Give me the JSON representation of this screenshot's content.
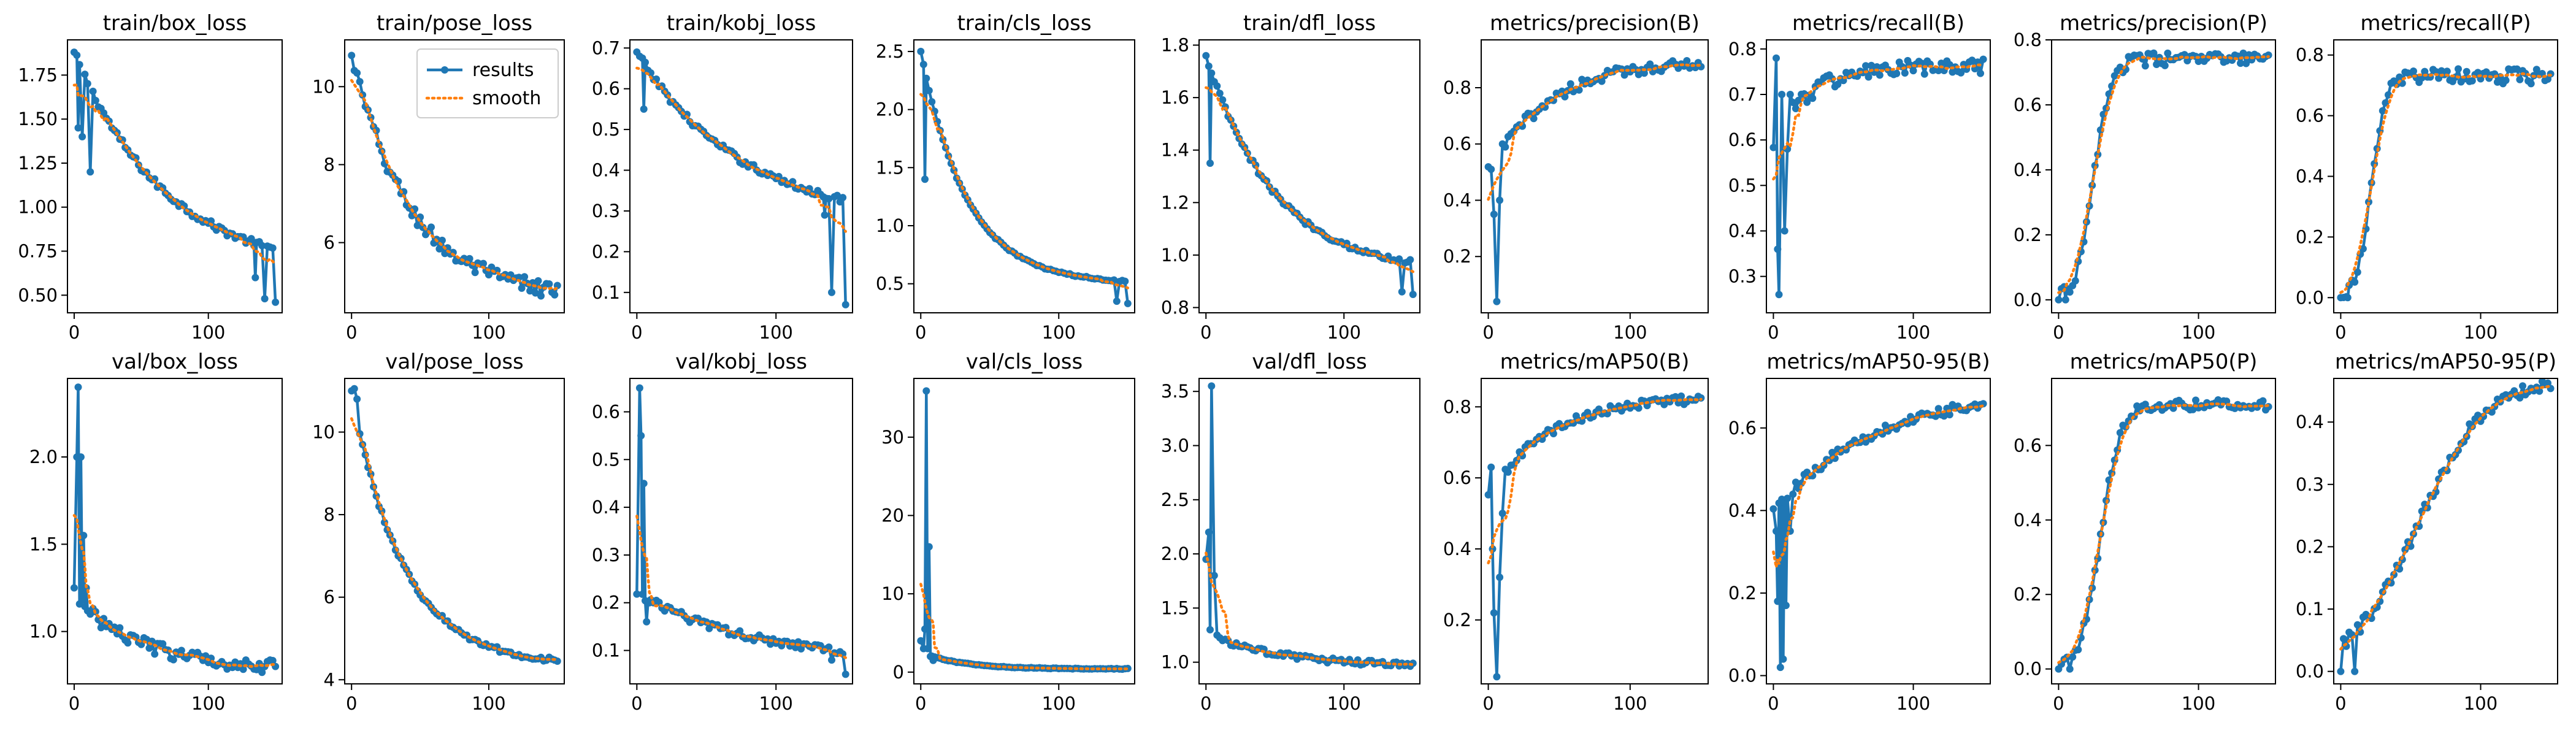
{
  "figure": {
    "background": "#ffffff"
  },
  "legend": {
    "entries": [
      {
        "label": "results",
        "color": "#1f77b4",
        "style": "line-marker"
      },
      {
        "label": "smooth",
        "color": "#ff7f0e",
        "style": "dotted"
      }
    ],
    "placement": "upper-right of train/pose_loss panel"
  },
  "chart_data": [
    {
      "type": "line",
      "title": "train/box_loss",
      "xlim": [
        -5,
        155
      ],
      "ylim": [
        0.4,
        1.95
      ],
      "xticks": [
        0,
        100
      ],
      "yticks": [
        0.5,
        0.75,
        1.0,
        1.25,
        1.5,
        1.75
      ],
      "ytick_labels": [
        "0.50",
        "0.75",
        "1.00",
        "1.25",
        "1.50",
        "1.75"
      ],
      "series": [
        {
          "name": "results",
          "profile": "decay",
          "start": 1.88,
          "end": 0.62,
          "rate": 2.2,
          "noise": 0.02,
          "points": [
            [
              0,
              1.88
            ],
            [
              3,
              1.45
            ],
            [
              6,
              1.4
            ],
            [
              12,
              1.2
            ],
            [
              135,
              0.6
            ],
            [
              142,
              0.48
            ],
            [
              150,
              0.46
            ]
          ]
        },
        {
          "name": "smooth"
        }
      ]
    },
    {
      "type": "line",
      "title": "train/pose_loss",
      "xlim": [
        -5,
        155
      ],
      "ylim": [
        4.2,
        11.2
      ],
      "xticks": [
        0,
        100
      ],
      "yticks": [
        6,
        8,
        10
      ],
      "ytick_labels": [
        "6",
        "8",
        "10"
      ],
      "series": [
        {
          "name": "results",
          "profile": "decay",
          "start": 10.8,
          "end": 4.6,
          "rate": 3.5,
          "noise": 0.22,
          "points": [
            [
              0,
              10.8
            ],
            [
              150,
              4.9
            ]
          ]
        },
        {
          "name": "smooth"
        }
      ]
    },
    {
      "type": "line",
      "title": "train/kobj_loss",
      "xlim": [
        -5,
        155
      ],
      "ylim": [
        0.05,
        0.72
      ],
      "xticks": [
        0,
        100
      ],
      "yticks": [
        0.1,
        0.2,
        0.3,
        0.4,
        0.5,
        0.6,
        0.7
      ],
      "ytick_labels": [
        "0.1",
        "0.2",
        "0.3",
        "0.4",
        "0.5",
        "0.6",
        "0.7"
      ],
      "series": [
        {
          "name": "results",
          "profile": "decay",
          "start": 0.69,
          "end": 0.27,
          "rate": 2.0,
          "noise": 0.008,
          "points": [
            [
              0,
              0.69
            ],
            [
              5,
              0.55
            ],
            [
              135,
              0.29
            ],
            [
              140,
              0.1
            ],
            [
              150,
              0.07
            ]
          ]
        },
        {
          "name": "smooth"
        }
      ]
    },
    {
      "type": "line",
      "title": "train/cls_loss",
      "xlim": [
        -5,
        155
      ],
      "ylim": [
        0.25,
        2.6
      ],
      "xticks": [
        0,
        100
      ],
      "yticks": [
        0.5,
        1.0,
        1.5,
        2.0,
        2.5
      ],
      "ytick_labels": [
        "0.5",
        "1.0",
        "1.5",
        "2.0",
        "2.5"
      ],
      "series": [
        {
          "name": "results",
          "profile": "decay",
          "start": 2.5,
          "end": 0.5,
          "rate": 4.5,
          "noise": 0.008,
          "points": [
            [
              0,
              2.5
            ],
            [
              3,
              1.4
            ],
            [
              142,
              0.35
            ],
            [
              150,
              0.33
            ]
          ]
        },
        {
          "name": "smooth"
        }
      ]
    },
    {
      "type": "line",
      "title": "train/dfl_loss",
      "xlim": [
        -5,
        155
      ],
      "ylim": [
        0.78,
        1.82
      ],
      "xticks": [
        0,
        100
      ],
      "yticks": [
        0.8,
        1.0,
        1.2,
        1.4,
        1.6,
        1.8
      ],
      "ytick_labels": [
        "0.8",
        "1.0",
        "1.2",
        "1.4",
        "1.6",
        "1.8"
      ],
      "series": [
        {
          "name": "results",
          "profile": "decay",
          "start": 1.76,
          "end": 0.93,
          "rate": 3.0,
          "noise": 0.01,
          "points": [
            [
              0,
              1.76
            ],
            [
              3,
              1.35
            ],
            [
              142,
              0.86
            ],
            [
              150,
              0.85
            ]
          ]
        },
        {
          "name": "smooth"
        }
      ]
    },
    {
      "type": "line",
      "title": "metrics/precision(B)",
      "xlim": [
        -5,
        155
      ],
      "ylim": [
        0.0,
        0.97
      ],
      "xticks": [
        0,
        100
      ],
      "yticks": [
        0.2,
        0.4,
        0.6,
        0.8
      ],
      "ytick_labels": [
        "0.2",
        "0.4",
        "0.6",
        "0.8"
      ],
      "series": [
        {
          "name": "results",
          "profile": "rise",
          "start": 0.5,
          "end": 0.9,
          "rate": 3.5,
          "noise": 0.02,
          "points": [
            [
              2,
              0.51
            ],
            [
              4,
              0.35
            ],
            [
              6,
              0.04
            ],
            [
              8,
              0.4
            ],
            [
              10,
              0.6
            ]
          ]
        },
        {
          "name": "smooth"
        }
      ]
    },
    {
      "type": "line",
      "title": "metrics/recall(B)",
      "xlim": [
        -5,
        155
      ],
      "ylim": [
        0.22,
        0.82
      ],
      "xticks": [
        0,
        100
      ],
      "yticks": [
        0.3,
        0.4,
        0.5,
        0.6,
        0.7,
        0.8
      ],
      "ytick_labels": [
        "0.3",
        "0.4",
        "0.5",
        "0.6",
        "0.7",
        "0.8"
      ],
      "series": [
        {
          "name": "results",
          "profile": "rise",
          "start": 0.6,
          "end": 0.76,
          "rate": 6.0,
          "noise": 0.018,
          "points": [
            [
              2,
              0.78
            ],
            [
              3,
              0.36
            ],
            [
              4,
              0.26
            ],
            [
              6,
              0.7
            ],
            [
              8,
              0.4
            ],
            [
              10,
              0.58
            ],
            [
              12,
              0.7
            ]
          ]
        },
        {
          "name": "smooth"
        }
      ]
    },
    {
      "type": "line",
      "title": "metrics/precision(P)",
      "xlim": [
        -5,
        155
      ],
      "ylim": [
        -0.04,
        0.8
      ],
      "xticks": [
        0,
        100
      ],
      "yticks": [
        0.0,
        0.2,
        0.4,
        0.6,
        0.8
      ],
      "ytick_labels": [
        "0.0",
        "0.2",
        "0.4",
        "0.6",
        "0.8"
      ],
      "series": [
        {
          "name": "results",
          "profile": "sigmoid",
          "start": 0.0,
          "end": 0.74,
          "mid": 25,
          "width": 6,
          "noise": 0.02,
          "points": [
            [
              0,
              0.0
            ],
            [
              5,
              0.0
            ]
          ]
        },
        {
          "name": "smooth"
        }
      ]
    },
    {
      "type": "line",
      "title": "metrics/recall(P)",
      "xlim": [
        -5,
        155
      ],
      "ylim": [
        -0.05,
        0.85
      ],
      "xticks": [
        0,
        100
      ],
      "yticks": [
        0.0,
        0.2,
        0.4,
        0.6,
        0.8
      ],
      "ytick_labels": [
        "0.0",
        "0.2",
        "0.4",
        "0.6",
        "0.8"
      ],
      "series": [
        {
          "name": "results",
          "profile": "sigmoid",
          "start": 0.0,
          "end": 0.73,
          "mid": 22,
          "width": 5,
          "noise": 0.025,
          "points": [
            [
              0,
              0.0
            ],
            [
              5,
              0.0
            ]
          ]
        },
        {
          "name": "smooth"
        }
      ]
    },
    {
      "type": "line",
      "title": "val/box_loss",
      "xlim": [
        -5,
        155
      ],
      "ylim": [
        0.7,
        2.45
      ],
      "xticks": [
        0,
        100
      ],
      "yticks": [
        1.0,
        1.5,
        2.0
      ],
      "ytick_labels": [
        "1.0",
        "1.5",
        "2.0"
      ],
      "series": [
        {
          "name": "results",
          "profile": "decay",
          "start": 1.2,
          "end": 0.78,
          "rate": 3.0,
          "noise": 0.04,
          "points": [
            [
              0,
              1.25
            ],
            [
              2,
              2.0
            ],
            [
              3,
              2.4
            ],
            [
              5,
              2.0
            ],
            [
              7,
              1.55
            ],
            [
              9,
              1.25
            ],
            [
              12,
              1.1
            ]
          ]
        },
        {
          "name": "smooth"
        }
      ]
    },
    {
      "type": "line",
      "title": "val/pose_loss",
      "xlim": [
        -5,
        155
      ],
      "ylim": [
        3.9,
        11.3
      ],
      "xticks": [
        0,
        100
      ],
      "yticks": [
        4,
        6,
        8,
        10
      ],
      "ytick_labels": [
        "4",
        "6",
        "8",
        "10"
      ],
      "series": [
        {
          "name": "results",
          "profile": "decay",
          "start": 11.0,
          "end": 4.35,
          "rate": 4.0,
          "noise": 0.06,
          "points": [
            [
              0,
              11.0
            ],
            [
              2,
              11.05
            ],
            [
              4,
              10.8
            ]
          ]
        },
        {
          "name": "smooth"
        }
      ]
    },
    {
      "type": "line",
      "title": "val/kobj_loss",
      "xlim": [
        -5,
        155
      ],
      "ylim": [
        0.03,
        0.67
      ],
      "xticks": [
        0,
        100
      ],
      "yticks": [
        0.1,
        0.2,
        0.3,
        0.4,
        0.5,
        0.6
      ],
      "ytick_labels": [
        "0.1",
        "0.2",
        "0.3",
        "0.4",
        "0.5",
        "0.6"
      ],
      "series": [
        {
          "name": "results",
          "profile": "decay",
          "start": 0.22,
          "end": 0.075,
          "rate": 1.8,
          "noise": 0.008,
          "points": [
            [
              2,
              0.65
            ],
            [
              3,
              0.55
            ],
            [
              5,
              0.45
            ],
            [
              7,
              0.16
            ],
            [
              9,
              0.2
            ],
            [
              12,
              0.2
            ],
            [
              140,
              0.08
            ],
            [
              150,
              0.05
            ]
          ]
        },
        {
          "name": "smooth"
        }
      ]
    },
    {
      "type": "line",
      "title": "val/cls_loss",
      "xlim": [
        -5,
        155
      ],
      "ylim": [
        -1.5,
        37.5
      ],
      "xticks": [
        0,
        100
      ],
      "yticks": [
        0,
        10,
        20,
        30
      ],
      "ytick_labels": [
        "0",
        "10",
        "20",
        "30"
      ],
      "series": [
        {
          "name": "results",
          "profile": "decay",
          "start": 2.5,
          "end": 0.4,
          "rate": 5.0,
          "noise": 0.05,
          "points": [
            [
              0,
              4.0
            ],
            [
              2,
              3.0
            ],
            [
              3,
              5.5
            ],
            [
              4,
              35.9
            ],
            [
              5,
              3.0
            ],
            [
              6,
              16.0
            ],
            [
              7,
              2.0
            ],
            [
              9,
              1.5
            ]
          ]
        },
        {
          "name": "smooth"
        }
      ]
    },
    {
      "type": "line",
      "title": "val/dfl_loss",
      "xlim": [
        -5,
        155
      ],
      "ylim": [
        0.8,
        3.62
      ],
      "xticks": [
        0,
        100
      ],
      "yticks": [
        1.0,
        1.5,
        2.0,
        2.5,
        3.0,
        3.5
      ],
      "ytick_labels": [
        "1.0",
        "1.5",
        "2.0",
        "2.5",
        "3.0",
        "3.5"
      ],
      "series": [
        {
          "name": "results",
          "profile": "decay",
          "start": 1.25,
          "end": 0.95,
          "rate": 2.5,
          "noise": 0.025,
          "points": [
            [
              0,
              1.95
            ],
            [
              2,
              2.2
            ],
            [
              3,
              1.3
            ],
            [
              4,
              3.55
            ],
            [
              6,
              1.8
            ],
            [
              8,
              1.25
            ],
            [
              12,
              1.2
            ]
          ]
        },
        {
          "name": "smooth"
        }
      ]
    },
    {
      "type": "line",
      "title": "metrics/mAP50(B)",
      "xlim": [
        -5,
        155
      ],
      "ylim": [
        0.02,
        0.88
      ],
      "xticks": [
        0,
        100
      ],
      "yticks": [
        0.2,
        0.4,
        0.6,
        0.8
      ],
      "ytick_labels": [
        "0.2",
        "0.4",
        "0.6",
        "0.8"
      ],
      "series": [
        {
          "name": "results",
          "profile": "rise",
          "start": 0.55,
          "end": 0.83,
          "rate": 3.5,
          "noise": 0.012,
          "points": [
            [
              2,
              0.63
            ],
            [
              3,
              0.4
            ],
            [
              4,
              0.22
            ],
            [
              6,
              0.04
            ],
            [
              8,
              0.32
            ],
            [
              10,
              0.5
            ]
          ]
        },
        {
          "name": "smooth"
        }
      ]
    },
    {
      "type": "line",
      "title": "metrics/mAP50-95(B)",
      "xlim": [
        -5,
        155
      ],
      "ylim": [
        -0.02,
        0.72
      ],
      "xticks": [
        0,
        100
      ],
      "yticks": [
        0.0,
        0.2,
        0.4,
        0.6
      ],
      "ytick_labels": [
        "0.0",
        "0.2",
        "0.4",
        "0.6"
      ],
      "series": [
        {
          "name": "results",
          "profile": "rise",
          "start": 0.4,
          "end": 0.7,
          "rate": 2.0,
          "noise": 0.012,
          "points": [
            [
              2,
              0.35
            ],
            [
              3,
              0.18
            ],
            [
              5,
              0.02
            ],
            [
              7,
              0.04
            ],
            [
              9,
              0.17
            ],
            [
              12,
              0.35
            ]
          ]
        },
        {
          "name": "smooth"
        }
      ]
    },
    {
      "type": "line",
      "title": "metrics/mAP50(P)",
      "xlim": [
        -5,
        155
      ],
      "ylim": [
        -0.04,
        0.78
      ],
      "xticks": [
        0,
        100
      ],
      "yticks": [
        0.0,
        0.2,
        0.4,
        0.6
      ],
      "ytick_labels": [
        "0.0",
        "0.2",
        "0.4",
        "0.6"
      ],
      "series": [
        {
          "name": "results",
          "profile": "sigmoid",
          "start": 0.0,
          "end": 0.71,
          "mid": 30,
          "width": 7,
          "noise": 0.015,
          "points": [
            [
              0,
              0.0
            ],
            [
              8,
              0.0
            ]
          ]
        },
        {
          "name": "smooth"
        }
      ]
    },
    {
      "type": "line",
      "title": "metrics/mAP50-95(P)",
      "xlim": [
        -5,
        155
      ],
      "ylim": [
        -0.02,
        0.47
      ],
      "xticks": [
        0,
        100
      ],
      "yticks": [
        0.0,
        0.1,
        0.2,
        0.3,
        0.4
      ],
      "ytick_labels": [
        "0.0",
        "0.1",
        "0.2",
        "0.3",
        "0.4"
      ],
      "series": [
        {
          "name": "results",
          "profile": "sigmoid",
          "start": 0.0,
          "end": 0.47,
          "mid": 55,
          "width": 24,
          "noise": 0.01,
          "points": [
            [
              0,
              0.0
            ],
            [
              10,
              0.0
            ]
          ]
        },
        {
          "name": "smooth"
        }
      ]
    }
  ]
}
